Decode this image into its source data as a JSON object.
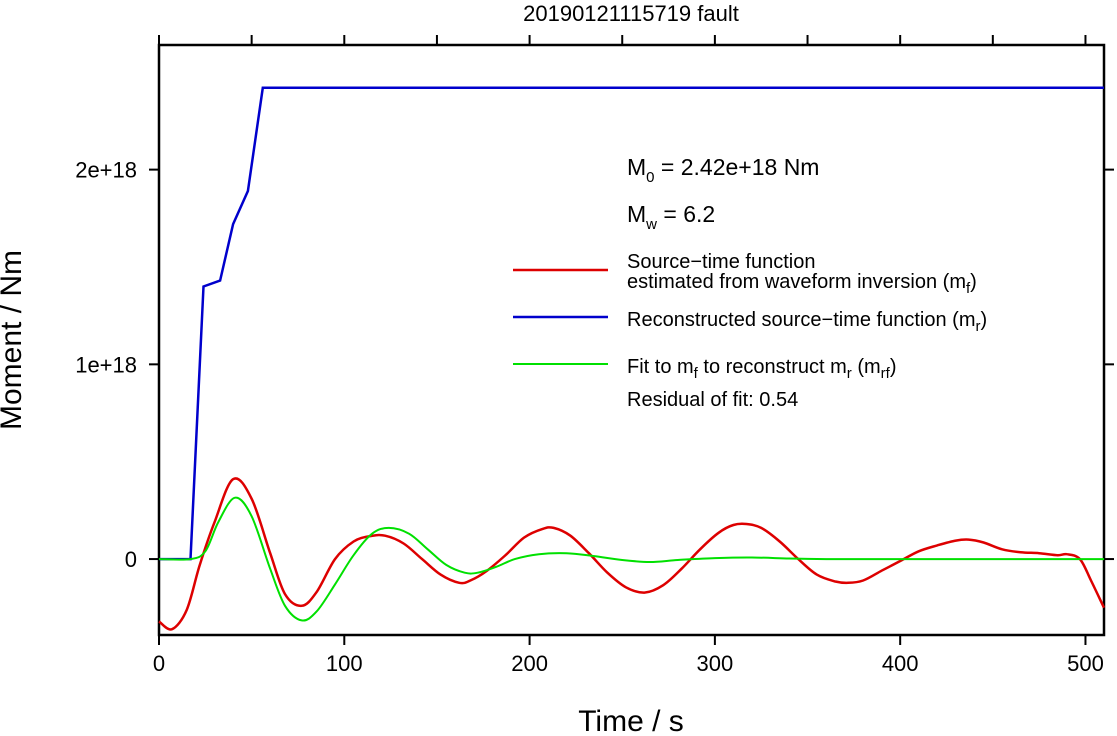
{
  "chart_data": {
    "type": "line",
    "title": "20190121115719 fault",
    "xlabel": "Time / s",
    "ylabel": "Moment / Nm",
    "xlim": [
      0,
      510
    ],
    "ylim": [
      -3.9e+17,
      2.64e+18
    ],
    "xticks": [
      0,
      100,
      200,
      300,
      400,
      500
    ],
    "xtick_labels": [
      "0",
      "100",
      "200",
      "300",
      "400",
      "500"
    ],
    "yticks": [
      0,
      1e+18,
      2e+18
    ],
    "ytick_labels": [
      "0",
      "1e+18",
      "2e+18"
    ],
    "grid": false,
    "legend_position": "right",
    "annotations": {
      "m0": {
        "prefix": "M",
        "sub": "0",
        "text": " = 2.42e+18 Nm"
      },
      "mw": {
        "prefix": "M",
        "sub": "w",
        "text": " = 6.2"
      },
      "residual": "Residual of fit: 0.54"
    },
    "legend": {
      "red": {
        "line1": "Source−time function",
        "line2a": "estimated from waveform inversion (m",
        "line2sub": "f",
        "line2b": ")"
      },
      "blue": {
        "a": "Reconstructed source−time function (m",
        "sub": "r",
        "b": ")"
      },
      "green": {
        "a": "Fit to m",
        "sub1": "f",
        "b": " to reconstruct m",
        "sub2": "r",
        "c": " (m",
        "sub3": "rf",
        "d": ")"
      }
    },
    "series": [
      {
        "key": "mr",
        "color": "#0000cc",
        "x": [
          0,
          17,
          24,
          33,
          40,
          48,
          56,
          510
        ],
        "y": [
          0,
          0,
          1.4e+18,
          1.43e+18,
          1.72e+18,
          1.89e+18,
          2.42e+18,
          2.42e+18
        ]
      },
      {
        "key": "mf",
        "color": "#dd0000",
        "x": [
          0,
          7,
          15,
          22,
          30,
          40,
          50,
          60,
          68,
          77,
          85,
          95,
          105,
          114,
          122,
          132,
          142,
          152,
          162,
          168,
          177,
          187,
          197,
          207,
          213,
          222,
          232,
          242,
          252,
          262,
          272,
          282,
          292,
          302,
          310,
          317,
          325,
          335,
          345,
          355,
          365,
          372,
          380,
          390,
          400,
          410,
          420,
          430,
          437,
          445,
          455,
          465,
          475,
          485,
          490,
          497,
          503,
          510
        ],
        "y": [
          -3.2e+17,
          -3.6e+17,
          -2.6e+17,
          -3e+16,
          1.9e+17,
          4.1e+17,
          3.1e+17,
          3e+16,
          -1.8e+17,
          -2.4e+17,
          -1.7e+17,
          0,
          9e+16,
          1.18e+17,
          1.2e+17,
          8e+16,
          0,
          -8e+16,
          -1.22e+17,
          -1.1e+17,
          -6e+16,
          2e+16,
          1.1e+17,
          1.55e+17,
          1.6e+17,
          1.2e+17,
          3e+16,
          -7e+16,
          -1.45e+17,
          -1.72e+17,
          -1.35e+17,
          -5e+16,
          5e+16,
          1.35e+17,
          1.75e+17,
          1.8e+17,
          1.6e+17,
          9e+16,
          0,
          -8e+16,
          -1.15e+17,
          -1.22e+17,
          -1.1e+17,
          -6e+16,
          -1e+16,
          4e+16,
          7e+16,
          9.5e+16,
          1e+17,
          8.5e+16,
          5e+16,
          3.5e+16,
          3e+16,
          2e+16,
          2.5e+16,
          0,
          -1.1e+17,
          -2.5e+17
        ]
      },
      {
        "key": "mrf",
        "color": "#00e000",
        "x": [
          0,
          17,
          25,
          32,
          41,
          50,
          60,
          68,
          77,
          85,
          95,
          105,
          115,
          124,
          135,
          145,
          155,
          165,
          172,
          182,
          192,
          205,
          220,
          235,
          250,
          265,
          280,
          300,
          320,
          340,
          360,
          380,
          400,
          450,
          510
        ],
        "y": [
          0,
          0,
          4e+16,
          1.9e+17,
          3.15e+17,
          2.2e+17,
          -5e+16,
          -2.4e+17,
          -3.15e+17,
          -2.7e+17,
          -1.3e+17,
          2e+16,
          1.3e+17,
          1.6e+17,
          1.3e+17,
          5e+16,
          -3e+16,
          -7e+16,
          -7e+16,
          -4e+16,
          0,
          2.5e+16,
          3e+16,
          1.5e+16,
          -5000000000000000.0,
          -1.5e+16,
          -5000000000000000.0,
          5000000000000000.0,
          8000000000000000.0,
          3000000000000000.0,
          0,
          0,
          0,
          0,
          0
        ]
      }
    ]
  }
}
